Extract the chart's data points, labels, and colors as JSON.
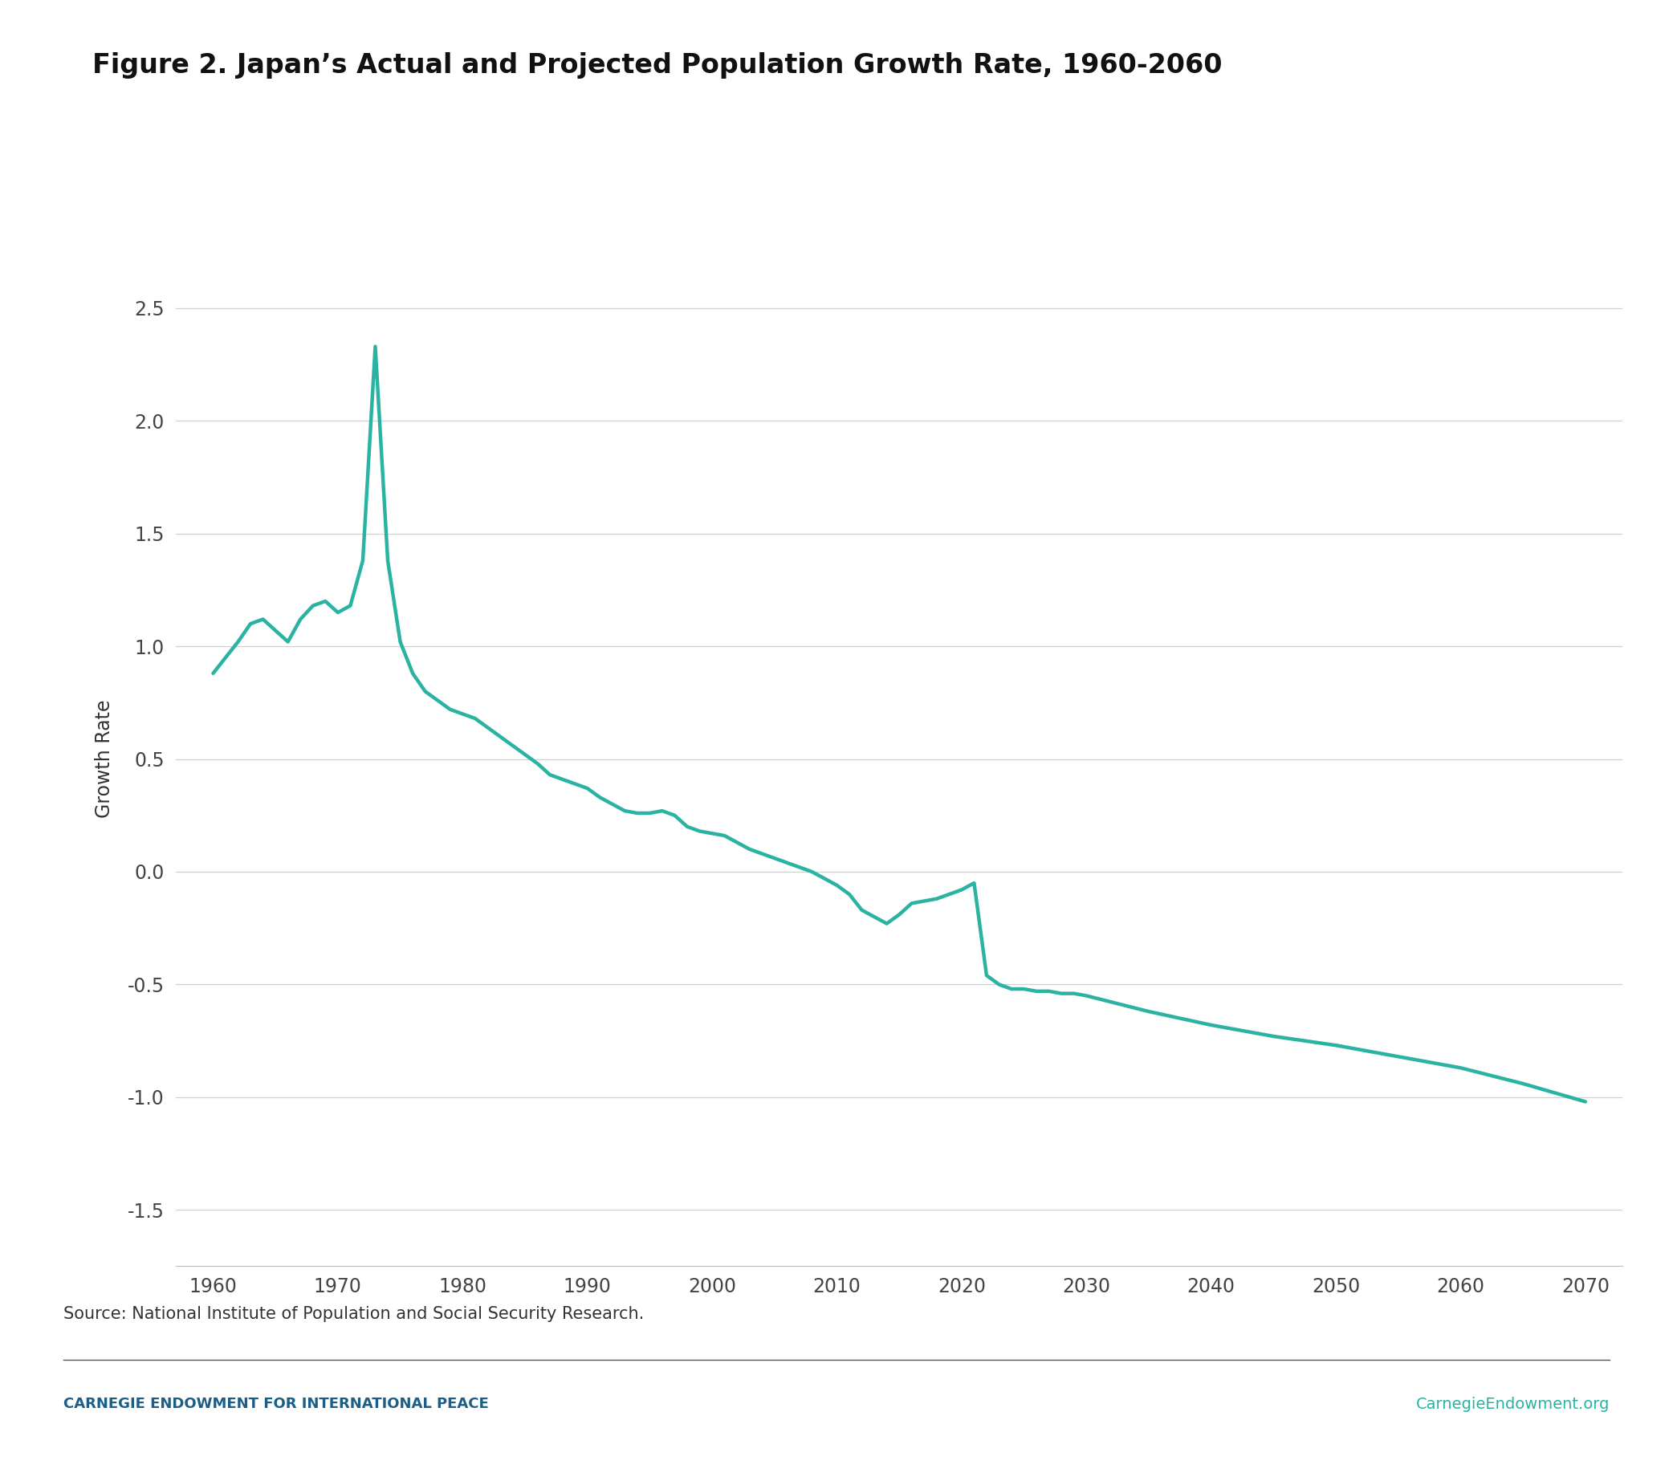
{
  "title": "Figure 2. Japan’s Actual and Projected Population Growth Rate, 1960-2060",
  "ylabel": "Growth Rate",
  "source_text": "Source: National Institute of Population and Social Security Research.",
  "footer_left": "CARNEGIE ENDOWMENT FOR INTERNATIONAL PEACE",
  "footer_right": "CarnegieEndowment.org",
  "line_color": "#2ab3a3",
  "line_width": 3.2,
  "background_color": "#ffffff",
  "xlim": [
    1957,
    2073
  ],
  "ylim": [
    -1.75,
    2.75
  ],
  "xticks": [
    1960,
    1970,
    1980,
    1990,
    2000,
    2010,
    2020,
    2030,
    2040,
    2050,
    2060,
    2070
  ],
  "yticks": [
    -1.5,
    -1.0,
    -0.5,
    0.0,
    0.5,
    1.0,
    1.5,
    2.0,
    2.5
  ],
  "ytick_labels": [
    "-1.5",
    "-1.0",
    "-0.5",
    "0.0",
    "0.5",
    "1.0",
    "1.5",
    "2.0",
    "2.5"
  ],
  "years": [
    1960,
    1961,
    1962,
    1963,
    1964,
    1965,
    1966,
    1967,
    1968,
    1969,
    1970,
    1971,
    1972,
    1973,
    1974,
    1975,
    1976,
    1977,
    1978,
    1979,
    1980,
    1981,
    1982,
    1983,
    1984,
    1985,
    1986,
    1987,
    1988,
    1989,
    1990,
    1991,
    1992,
    1993,
    1994,
    1995,
    1996,
    1997,
    1998,
    1999,
    2000,
    2001,
    2002,
    2003,
    2004,
    2005,
    2006,
    2007,
    2008,
    2009,
    2010,
    2011,
    2012,
    2013,
    2014,
    2015,
    2016,
    2017,
    2018,
    2019,
    2020,
    2021,
    2022,
    2023,
    2024,
    2025,
    2026,
    2027,
    2028,
    2029,
    2030,
    2035,
    2040,
    2045,
    2050,
    2055,
    2060,
    2065,
    2070
  ],
  "values": [
    0.88,
    0.95,
    1.02,
    1.1,
    1.12,
    1.07,
    1.02,
    1.12,
    1.18,
    1.2,
    1.15,
    1.18,
    1.38,
    2.33,
    1.38,
    1.02,
    0.88,
    0.8,
    0.76,
    0.72,
    0.7,
    0.68,
    0.64,
    0.6,
    0.56,
    0.52,
    0.48,
    0.43,
    0.41,
    0.39,
    0.37,
    0.33,
    0.3,
    0.27,
    0.26,
    0.26,
    0.27,
    0.25,
    0.2,
    0.18,
    0.17,
    0.16,
    0.13,
    0.1,
    0.08,
    0.06,
    0.04,
    0.02,
    0.0,
    -0.03,
    -0.06,
    -0.1,
    -0.17,
    -0.2,
    -0.23,
    -0.19,
    -0.14,
    -0.13,
    -0.12,
    -0.1,
    -0.08,
    -0.05,
    -0.46,
    -0.5,
    -0.52,
    -0.52,
    -0.53,
    -0.53,
    -0.54,
    -0.54,
    -0.55,
    -0.62,
    -0.68,
    -0.73,
    -0.77,
    -0.82,
    -0.87,
    -0.94,
    -1.02
  ]
}
